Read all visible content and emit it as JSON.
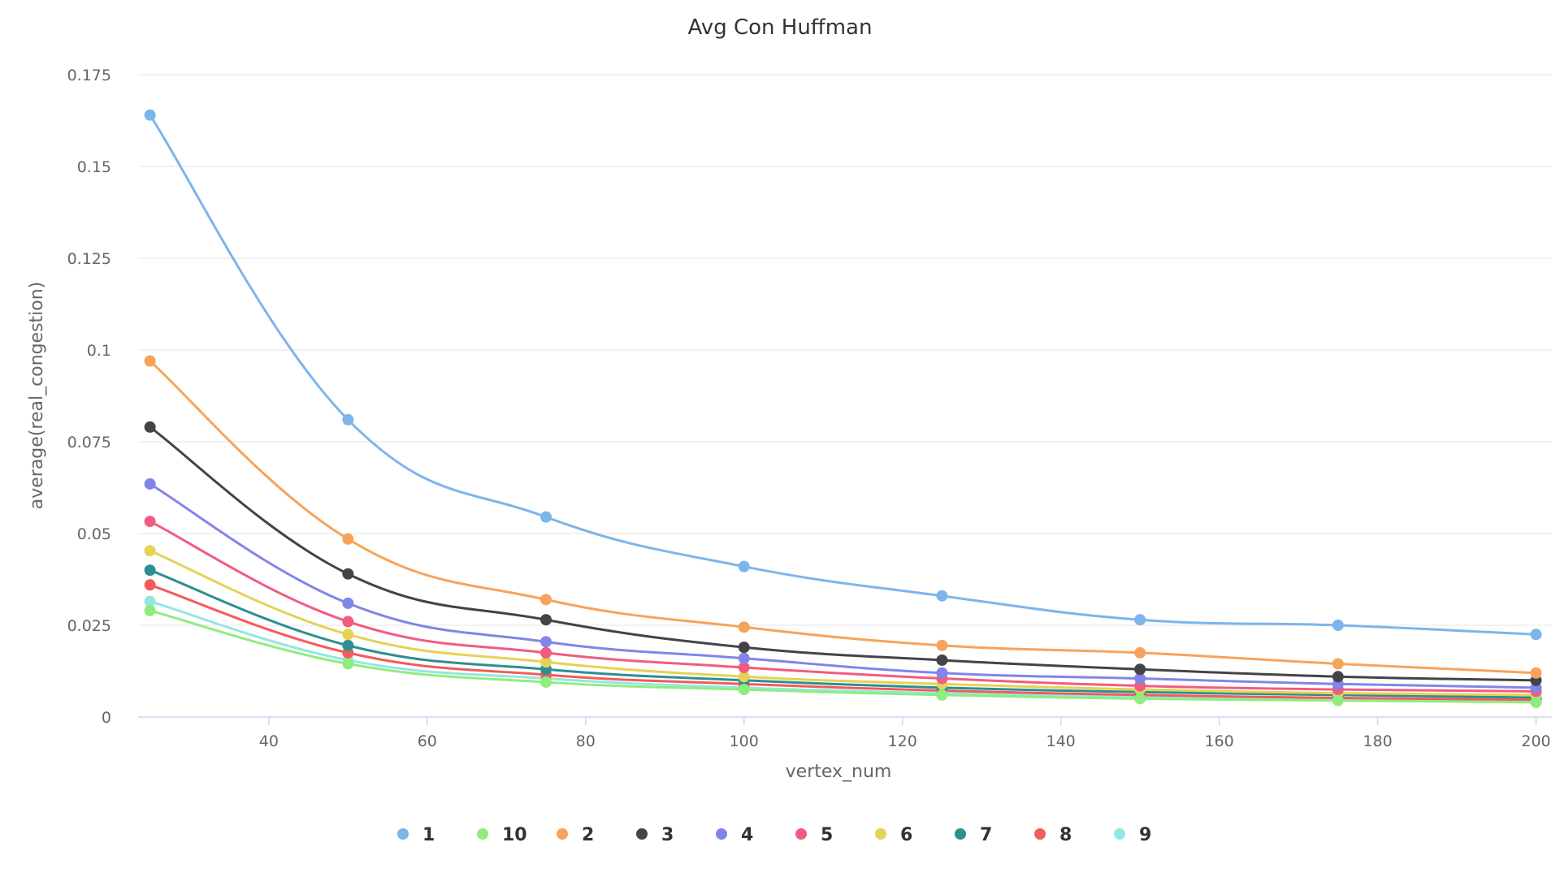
{
  "chart_data": {
    "type": "line",
    "title": "Avg Con Huffman",
    "xlabel": "vertex_num",
    "ylabel": "average(real_congestion)",
    "x": [
      25,
      50,
      75,
      100,
      125,
      150,
      175,
      200
    ],
    "xlim": [
      23.5,
      202
    ],
    "ylim": [
      0,
      0.175
    ],
    "x_ticks": [
      40,
      60,
      80,
      100,
      120,
      140,
      160,
      180,
      200
    ],
    "x_tick_labels": [
      "40",
      "60",
      "80",
      "100",
      "120",
      "140",
      "160",
      "180",
      "200"
    ],
    "y_ticks": [
      0,
      0.025,
      0.05,
      0.075,
      0.1,
      0.125,
      0.15,
      0.175
    ],
    "y_tick_labels": [
      "0",
      "0.025",
      "0.05",
      "0.075",
      "0.1",
      "0.125",
      "0.15",
      "0.175"
    ],
    "grid": true,
    "legend_position": "bottom-center",
    "series": [
      {
        "name": "1",
        "color": "#7cb5ec",
        "values": [
          0.164,
          0.081,
          0.0545,
          0.041,
          0.033,
          0.0265,
          0.025,
          0.0225
        ]
      },
      {
        "name": "10",
        "color": "#90ed7d",
        "values": [
          0.029,
          0.0145,
          0.0095,
          0.0075,
          0.006,
          0.005,
          0.0045,
          0.004
        ]
      },
      {
        "name": "2",
        "color": "#f7a35c",
        "values": [
          0.097,
          0.0485,
          0.032,
          0.0245,
          0.0195,
          0.0175,
          0.0145,
          0.012
        ]
      },
      {
        "name": "3",
        "color": "#434348",
        "values": [
          0.079,
          0.039,
          0.0265,
          0.019,
          0.0155,
          0.013,
          0.011,
          0.01
        ]
      },
      {
        "name": "4",
        "color": "#8085e9",
        "values": [
          0.0635,
          0.031,
          0.0205,
          0.016,
          0.012,
          0.0105,
          0.009,
          0.008
        ]
      },
      {
        "name": "5",
        "color": "#f15c80",
        "values": [
          0.0533,
          0.026,
          0.0175,
          0.0135,
          0.0105,
          0.0085,
          0.0075,
          0.007
        ]
      },
      {
        "name": "6",
        "color": "#e4d354",
        "values": [
          0.0453,
          0.0225,
          0.015,
          0.011,
          0.009,
          0.0075,
          0.0065,
          0.006
        ]
      },
      {
        "name": "7",
        "color": "#2b908f",
        "values": [
          0.04,
          0.0195,
          0.013,
          0.01,
          0.008,
          0.0068,
          0.006,
          0.0053
        ]
      },
      {
        "name": "8",
        "color": "#f45b5b",
        "values": [
          0.036,
          0.0175,
          0.0115,
          0.009,
          0.0072,
          0.006,
          0.0052,
          0.0047
        ]
      },
      {
        "name": "9",
        "color": "#91e8e1",
        "values": [
          0.0315,
          0.0155,
          0.0105,
          0.008,
          0.0065,
          0.0055,
          0.0048,
          0.0042
        ]
      }
    ]
  }
}
